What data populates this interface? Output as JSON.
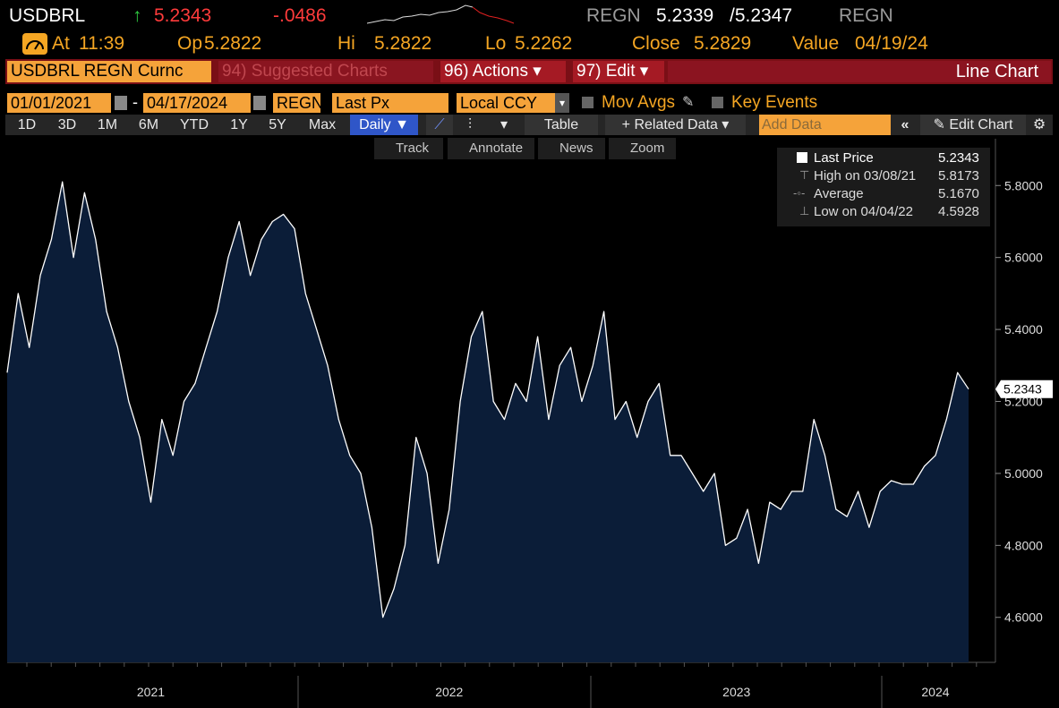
{
  "header": {
    "ticker": "USDBRL",
    "price": "5.2343",
    "change": "-.0486",
    "source": "REGN",
    "bid": "5.2339",
    "ask": "/5.2347",
    "source2": "REGN",
    "stats": [
      {
        "label": "At",
        "value": "11:39"
      },
      {
        "label": "Op",
        "value": "5.2822"
      },
      {
        "label": "Hi",
        "value": "5.2822"
      },
      {
        "label": "Lo",
        "value": "5.2262"
      },
      {
        "label": "Close",
        "value": "5.2829"
      },
      {
        "label": "Value",
        "value": "04/19/24"
      }
    ]
  },
  "menu": {
    "security": "USDBRL REGN Curnc",
    "suggested": "94) Suggested Charts",
    "actions": "96) Actions",
    "edit": "97) Edit",
    "chart_kind": "Line Chart"
  },
  "settings": {
    "start": "01/01/2021",
    "end": "04/17/2024",
    "source": "REGN",
    "field": "Last Px",
    "currency": "Local CCY",
    "mov_avgs": "Mov Avgs",
    "key_events": "Key Events"
  },
  "toolbar": {
    "periods": [
      "1D",
      "3D",
      "1M",
      "6M",
      "YTD",
      "1Y",
      "5Y",
      "Max"
    ],
    "frequency": "Daily",
    "table": "Table",
    "related": "Related Data",
    "add_data": "Add Data",
    "edit_chart": "Edit Chart"
  },
  "tools": [
    "Track",
    "Annotate",
    "News",
    "Zoom"
  ],
  "chart_data": {
    "type": "line",
    "color": "#ffffff",
    "fill": "#0b1d38",
    "values": [
      5.28,
      5.5,
      5.35,
      5.55,
      5.65,
      5.81,
      5.6,
      5.78,
      5.65,
      5.45,
      5.35,
      5.2,
      5.1,
      4.92,
      5.15,
      5.05,
      5.2,
      5.25,
      5.35,
      5.45,
      5.6,
      5.7,
      5.55,
      5.65,
      5.7,
      5.72,
      5.68,
      5.5,
      5.4,
      5.3,
      5.15,
      5.05,
      5.0,
      4.85,
      4.6,
      4.68,
      4.8,
      5.1,
      5.0,
      4.75,
      4.9,
      5.2,
      5.38,
      5.45,
      5.2,
      5.15,
      5.25,
      5.2,
      5.38,
      5.15,
      5.3,
      5.35,
      5.2,
      5.3,
      5.45,
      5.15,
      5.2,
      5.1,
      5.2,
      5.25,
      5.05,
      5.05,
      5.0,
      4.95,
      5.0,
      4.8,
      4.82,
      4.9,
      4.75,
      4.92,
      4.9,
      4.95,
      4.95,
      5.15,
      5.05,
      4.9,
      4.88,
      4.95,
      4.85,
      4.95,
      4.98,
      4.97,
      4.97,
      5.02,
      5.05,
      5.15,
      5.28,
      5.2343
    ],
    "ylim": [
      4.475,
      5.93
    ],
    "yticks": [
      {
        "value": 4.6,
        "label": "4.6000"
      },
      {
        "value": 4.8,
        "label": "4.8000"
      },
      {
        "value": 5.0,
        "label": "5.0000"
      },
      {
        "value": 5.2,
        "label": "5.2000"
      },
      {
        "value": 5.4,
        "label": "5.4000"
      },
      {
        "value": 5.6,
        "label": "5.6000"
      },
      {
        "value": 5.8,
        "label": "5.8000"
      }
    ],
    "xticks": [
      {
        "value": 13,
        "label": "2021"
      },
      {
        "value": 40,
        "label": "2022"
      },
      {
        "value": 66,
        "label": "2023"
      },
      {
        "value": 84,
        "label": "2024"
      }
    ],
    "legend": [
      {
        "label": "Last Price",
        "value": "5.2343"
      },
      {
        "label": "High on 03/08/21",
        "value": "5.8173"
      },
      {
        "label": "Average",
        "value": "5.1670"
      },
      {
        "label": "Low on 04/04/22",
        "value": "4.5928"
      }
    ]
  }
}
